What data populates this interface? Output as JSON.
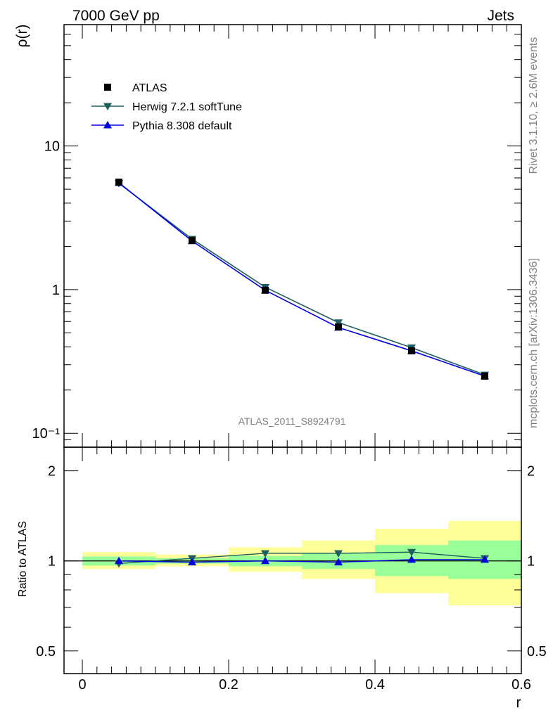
{
  "header": {
    "left": "7000 GeV pp",
    "right": "Jets"
  },
  "side_text": {
    "rivet": "Rivet 3.1.10, ≥ 2.6M events",
    "url": "mcplots.cern.ch [arXiv:1306.3436]"
  },
  "watermark": "ATLAS_2011_S8924791",
  "colors": {
    "data": "#000000",
    "herwig": "#1f5f5f",
    "pythia": "#0000e0",
    "band_inner": "#99ff99",
    "band_outer": "#ffff99"
  },
  "chart_data": [
    {
      "type": "line",
      "panel": "main",
      "ylabel": "ρ(r)",
      "yscale": "log",
      "ylim": [
        0.08,
        70
      ],
      "xlim": [
        -0.025,
        0.6
      ],
      "y_tick_labels": [
        "10⁻¹",
        "1",
        "10"
      ],
      "legend_position": "top-left",
      "x": [
        0.05,
        0.15,
        0.25,
        0.35,
        0.45,
        0.55
      ],
      "series": [
        {
          "name": "ATLAS",
          "marker": "square",
          "values": [
            5.6,
            2.2,
            0.99,
            0.55,
            0.375,
            0.25
          ]
        },
        {
          "name": "Herwig 7.2.1 softTune",
          "marker": "triangle-down",
          "values": [
            5.5,
            2.25,
            1.04,
            0.59,
            0.395,
            0.255
          ]
        },
        {
          "name": "Pythia 8.308 default",
          "marker": "triangle-up",
          "values": [
            5.55,
            2.18,
            0.99,
            0.545,
            0.375,
            0.25
          ]
        }
      ]
    },
    {
      "type": "line",
      "panel": "ratio",
      "ylabel": "Ratio to ATLAS",
      "xlabel": "r",
      "yscale": "log",
      "ylim": [
        0.42,
        2.4
      ],
      "xlim": [
        -0.025,
        0.6
      ],
      "y_tick_labels": [
        "0.5",
        "1",
        "2"
      ],
      "x_tick_labels": [
        "0",
        "0.2",
        "0.4",
        "0.6"
      ],
      "x": [
        0.05,
        0.15,
        0.25,
        0.35,
        0.45,
        0.55
      ],
      "bins": [
        [
          0.0,
          0.1
        ],
        [
          0.1,
          0.2
        ],
        [
          0.2,
          0.3
        ],
        [
          0.3,
          0.4
        ],
        [
          0.4,
          0.5
        ],
        [
          0.5,
          0.6
        ]
      ],
      "band_inner": {
        "low": [
          0.965,
          0.98,
          0.96,
          0.94,
          0.89,
          0.87
        ],
        "high": [
          1.035,
          1.02,
          1.04,
          1.06,
          1.13,
          1.17
        ]
      },
      "band_outer": {
        "low": [
          0.94,
          0.96,
          0.92,
          0.87,
          0.78,
          0.71
        ],
        "high": [
          1.07,
          1.05,
          1.11,
          1.17,
          1.28,
          1.36
        ]
      },
      "series": [
        {
          "name": "Herwig 7.2.1 softTune",
          "marker": "triangle-down",
          "values": [
            0.98,
            1.02,
            1.06,
            1.06,
            1.07,
            1.02
          ]
        },
        {
          "name": "Pythia 8.308 default",
          "marker": "triangle-up",
          "values": [
            1.0,
            0.99,
            1.0,
            0.99,
            1.01,
            1.01
          ]
        }
      ]
    }
  ]
}
